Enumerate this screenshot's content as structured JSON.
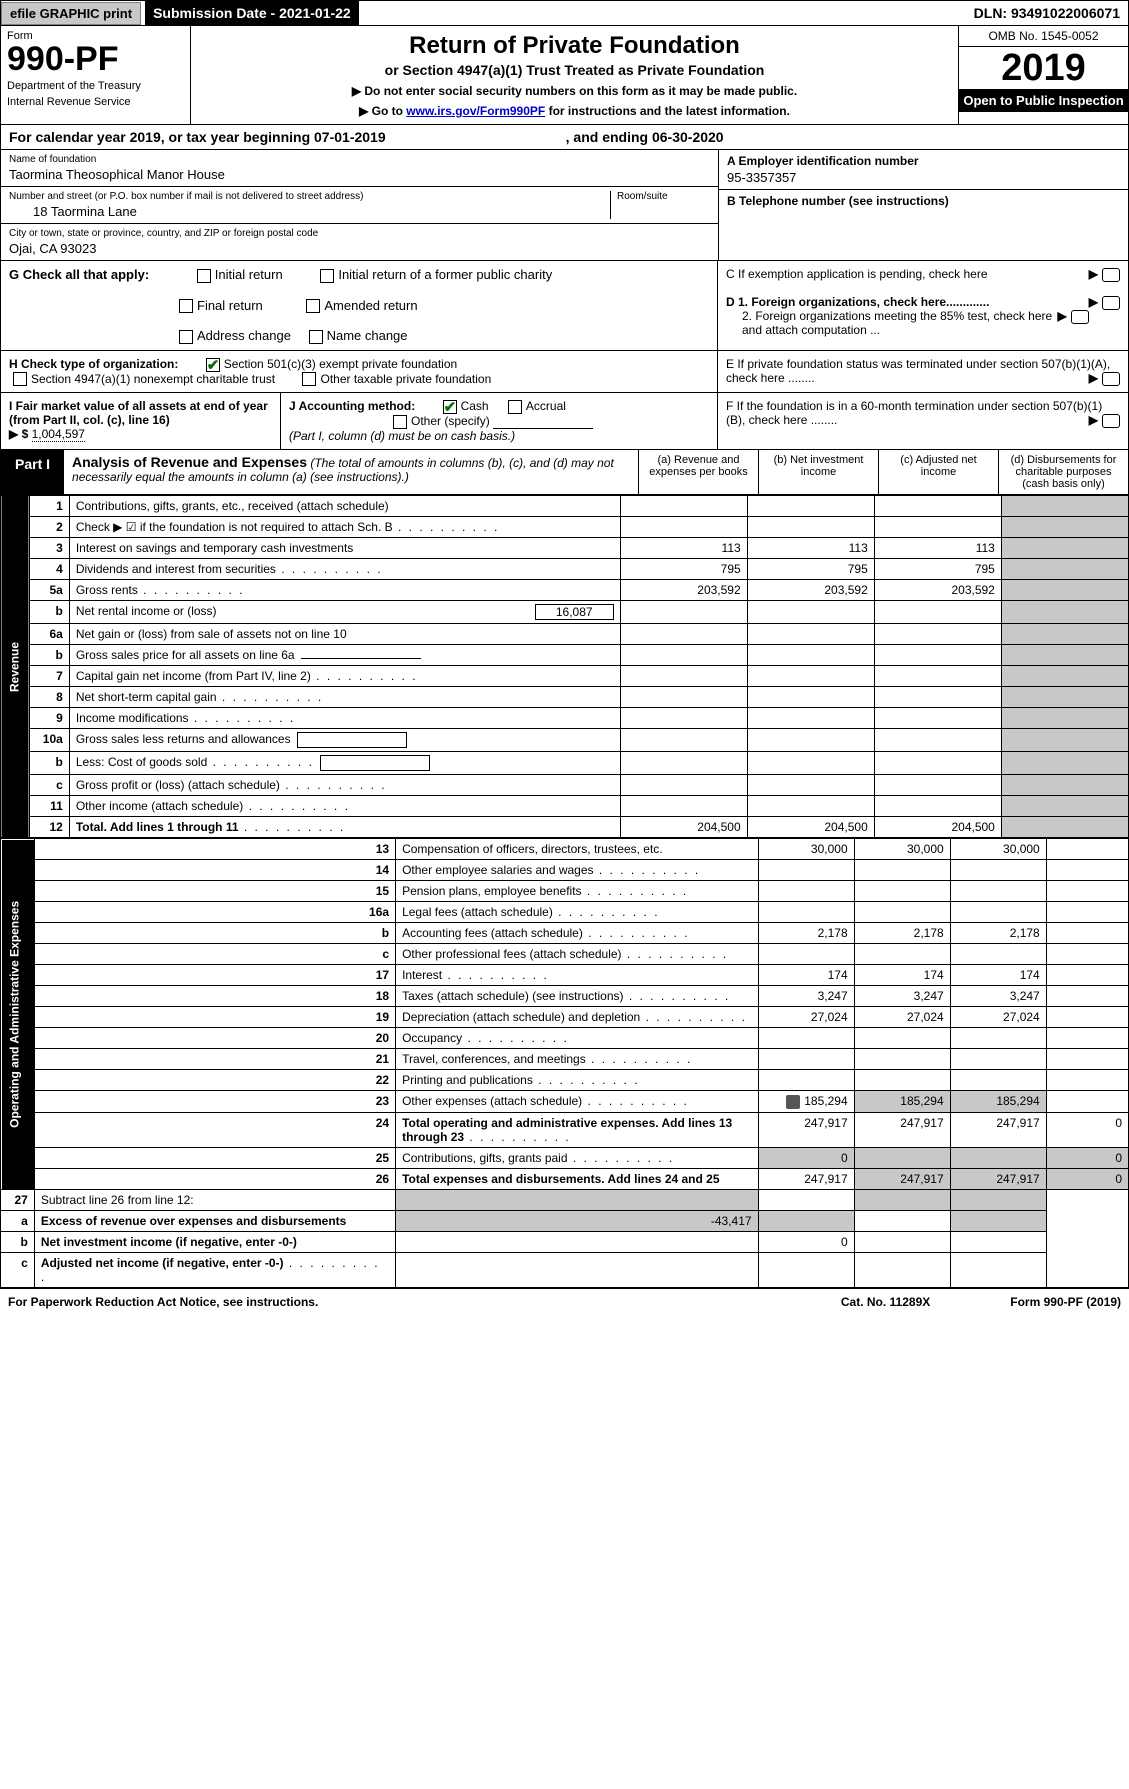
{
  "topbar": {
    "efile": "efile GRAPHIC print",
    "sub_date": "Submission Date - 2021-01-22",
    "dln": "DLN: 93491022006071"
  },
  "header": {
    "form_word": "Form",
    "form_num": "990-PF",
    "dept": "Department of the Treasury",
    "irs": "Internal Revenue Service",
    "title": "Return of Private Foundation",
    "subtitle": "or Section 4947(a)(1) Trust Treated as Private Foundation",
    "instr1": "▶ Do not enter social security numbers on this form as it may be made public.",
    "instr2_pre": "▶ Go to ",
    "instr2_link": "www.irs.gov/Form990PF",
    "instr2_post": " for instructions and the latest information.",
    "omb": "OMB No. 1545-0052",
    "year": "2019",
    "open": "Open to Public Inspection"
  },
  "cal": {
    "text": "For calendar year 2019, or tax year beginning 07-01-2019",
    "end": ", and ending 06-30-2020"
  },
  "info": {
    "name_label": "Name of foundation",
    "name": "Taormina Theosophical Manor House",
    "addr_label": "Number and street (or P.O. box number if mail is not delivered to street address)",
    "room_label": "Room/suite",
    "addr": "18 Taormina Lane",
    "city_label": "City or town, state or province, country, and ZIP or foreign postal code",
    "city": "Ojai, CA  93023",
    "ein_label": "A Employer identification number",
    "ein": "95-3357357",
    "tel_label": "B Telephone number (see instructions)",
    "tel": "",
    "c_label": "C If exemption application is pending, check here",
    "d1": "D 1. Foreign organizations, check here.............",
    "d2": "2. Foreign organizations meeting the 85% test, check here and attach computation ...",
    "e": "E  If private foundation status was terminated under section 507(b)(1)(A), check here ........",
    "f": "F  If the foundation is in a 60-month termination under section 507(b)(1)(B), check here ........"
  },
  "g": {
    "label": "G Check all that apply:",
    "o1": "Initial return",
    "o2": "Initial return of a former public charity",
    "o3": "Final return",
    "o4": "Amended return",
    "o5": "Address change",
    "o6": "Name change"
  },
  "h": {
    "label": "H Check type of organization:",
    "o1": "Section 501(c)(3) exempt private foundation",
    "o2": "Section 4947(a)(1) nonexempt charitable trust",
    "o3": "Other taxable private foundation"
  },
  "i": {
    "label": "I Fair market value of all assets at end of year (from Part II, col. (c), line 16)",
    "arrow": "▶ $",
    "val": "1,004,597"
  },
  "j": {
    "label": "J Accounting method:",
    "o1": "Cash",
    "o2": "Accrual",
    "o3": "Other (specify)",
    "note": "(Part I, column (d) must be on cash basis.)"
  },
  "part1": {
    "tab": "Part I",
    "title": "Analysis of Revenue and Expenses",
    "note": "(The total of amounts in columns (b), (c), and (d) may not necessarily equal the amounts in column (a) (see instructions).)",
    "col_a": "(a)   Revenue and expenses per books",
    "col_b": "(b)   Net investment income",
    "col_c": "(c)   Adjusted net income",
    "col_d": "(d)   Disbursements for charitable purposes (cash basis only)"
  },
  "side": {
    "rev": "Revenue",
    "exp": "Operating and Administrative Expenses"
  },
  "rows": [
    {
      "n": "1",
      "d": "Contributions, gifts, grants, etc., received (attach schedule)"
    },
    {
      "n": "2",
      "d": "Check ▶ ☑ if the foundation is not required to attach Sch. B",
      "dots": true
    },
    {
      "n": "3",
      "d": "Interest on savings and temporary cash investments",
      "a": "113",
      "b": "113",
      "c": "113"
    },
    {
      "n": "4",
      "d": "Dividends and interest from securities",
      "a": "795",
      "b": "795",
      "c": "795",
      "dots": true
    },
    {
      "n": "5a",
      "d": "Gross rents",
      "a": "203,592",
      "b": "203,592",
      "c": "203,592",
      "dots": true
    },
    {
      "n": "b",
      "d": "Net rental income or (loss)",
      "box": "16,087"
    },
    {
      "n": "6a",
      "d": "Net gain or (loss) from sale of assets not on line 10"
    },
    {
      "n": "b",
      "d": "Gross sales price for all assets on line 6a",
      "boxline": true
    },
    {
      "n": "7",
      "d": "Capital gain net income (from Part IV, line 2)",
      "dots": true
    },
    {
      "n": "8",
      "d": "Net short-term capital gain",
      "dots": true
    },
    {
      "n": "9",
      "d": "Income modifications",
      "dots": true
    },
    {
      "n": "10a",
      "d": "Gross sales less returns and allowances",
      "smbox": true
    },
    {
      "n": "b",
      "d": "Less: Cost of goods sold",
      "smbox": true,
      "dots": true
    },
    {
      "n": "c",
      "d": "Gross profit or (loss) (attach schedule)",
      "dots": true
    },
    {
      "n": "11",
      "d": "Other income (attach schedule)",
      "dots": true
    },
    {
      "n": "12",
      "d": "Total. Add lines 1 through 11",
      "bold": true,
      "a": "204,500",
      "b": "204,500",
      "c": "204,500",
      "dots": true
    }
  ],
  "exp_rows": [
    {
      "n": "13",
      "d": "Compensation of officers, directors, trustees, etc.",
      "a": "30,000",
      "b": "30,000",
      "c": "30,000"
    },
    {
      "n": "14",
      "d": "Other employee salaries and wages",
      "dots": true
    },
    {
      "n": "15",
      "d": "Pension plans, employee benefits",
      "dots": true
    },
    {
      "n": "16a",
      "d": "Legal fees (attach schedule)",
      "dots": true
    },
    {
      "n": "b",
      "d": "Accounting fees (attach schedule)",
      "a": "2,178",
      "b": "2,178",
      "c": "2,178",
      "dots": true
    },
    {
      "n": "c",
      "d": "Other professional fees (attach schedule)",
      "dots": true
    },
    {
      "n": "17",
      "d": "Interest",
      "a": "174",
      "b": "174",
      "c": "174",
      "dots": true
    },
    {
      "n": "18",
      "d": "Taxes (attach schedule) (see instructions)",
      "a": "3,247",
      "b": "3,247",
      "c": "3,247",
      "dots": true
    },
    {
      "n": "19",
      "d": "Depreciation (attach schedule) and depletion",
      "a": "27,024",
      "b": "27,024",
      "c": "27,024",
      "dots": true
    },
    {
      "n": "20",
      "d": "Occupancy",
      "dots": true
    },
    {
      "n": "21",
      "d": "Travel, conferences, and meetings",
      "dots": true
    },
    {
      "n": "22",
      "d": "Printing and publications",
      "dots": true
    },
    {
      "n": "23",
      "d": "Other expenses (attach schedule)",
      "a": "185,294",
      "b": "185,294",
      "c": "185,294",
      "icon": true,
      "dots": true
    },
    {
      "n": "24",
      "d": "Total operating and administrative expenses. Add lines 13 through 23",
      "bold": true,
      "a": "247,917",
      "b": "247,917",
      "c": "247,917",
      "dd": "0",
      "dots": true
    },
    {
      "n": "25",
      "d": "Contributions, gifts, grants paid",
      "a": "0",
      "dd": "0",
      "dots": true
    },
    {
      "n": "26",
      "d": "Total expenses and disbursements. Add lines 24 and 25",
      "bold": true,
      "a": "247,917",
      "b": "247,917",
      "c": "247,917",
      "dd": "0"
    },
    {
      "n": "27",
      "d": "Subtract line 26 from line 12:"
    },
    {
      "n": "a",
      "d": "Excess of revenue over expenses and disbursements",
      "bold": true,
      "a": "-43,417"
    },
    {
      "n": "b",
      "d": "Net investment income (if negative, enter -0-)",
      "bold": true,
      "b": "0"
    },
    {
      "n": "c",
      "d": "Adjusted net income (if negative, enter -0-)",
      "bold": true,
      "dots": true
    }
  ],
  "footer": {
    "left": "For Paperwork Reduction Act Notice, see instructions.",
    "mid": "Cat. No. 11289X",
    "right": "Form 990-PF (2019)"
  }
}
